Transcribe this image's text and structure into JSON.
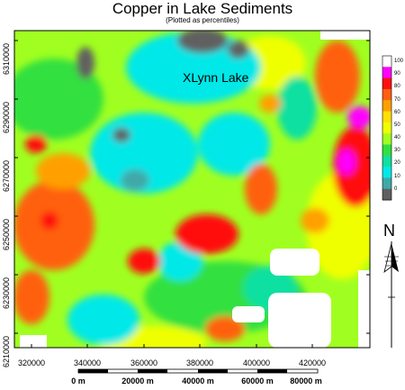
{
  "map": {
    "title": "Copper in Lake Sediments",
    "subtitle": "(Plotted as percentiles)",
    "place_label": "XLynn Lake",
    "y_ticks": [
      "6310000",
      "6290000",
      "6270000",
      "6250000",
      "6230000",
      "6210000"
    ],
    "x_ticks": [
      "320000",
      "340000",
      "360000",
      "380000",
      "400000",
      "420000"
    ],
    "scale_labels": [
      "0 m",
      "20000 m",
      "40000 m",
      "60000 m",
      "80000 m"
    ],
    "north_label": "N",
    "legend": {
      "labels": [
        "100",
        "90",
        "80",
        "70",
        "60",
        "50",
        "40",
        "30",
        "20",
        "10",
        "0"
      ],
      "colors": [
        "#ffffff",
        "#ff00ff",
        "#ff1010",
        "#ff6010",
        "#ffa000",
        "#ffe000",
        "#f0ff00",
        "#a0ff20",
        "#30e040",
        "#10e0a0",
        "#00e8e8",
        "#40a8a8",
        "#606060"
      ]
    }
  }
}
